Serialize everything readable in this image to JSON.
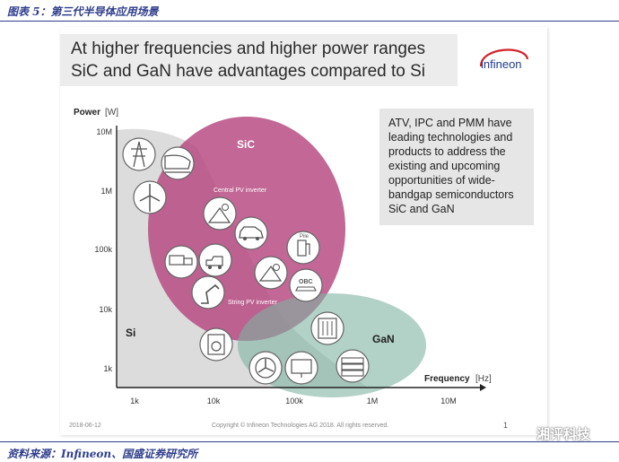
{
  "caption": "图表 5：第三代半导体应用场景",
  "source": "资料来源：Infineon、国盛证券研究所",
  "slide": {
    "title_line1": "At higher frequencies and higher power ranges",
    "title_line2": "SiC and GaN have advantages compared to Si",
    "logo_text": "infineon",
    "info_lines": [
      "ATV, IPC and PMM have",
      "leading technologies and",
      "products to address the",
      "existing and upcoming",
      "opportunities of wide-",
      "bandgap semiconductors",
      "SiC and GaN"
    ],
    "date": "2018-06-12",
    "copyright": "Copyright © Infineon Technologies AG 2018. All rights reserved.",
    "page_number": "1"
  },
  "diagram": {
    "y_axis": {
      "label": "Power",
      "unit": "[W]",
      "ticks": [
        "10M",
        "1M",
        "100k",
        "10k",
        "1k"
      ]
    },
    "x_axis": {
      "label": "Frequency",
      "unit": "[Hz]",
      "ticks": [
        "1k",
        "10k",
        "100k",
        "1M",
        "10M"
      ]
    },
    "regions": {
      "si": "Si",
      "sic": "SiC",
      "gan": "GaN"
    },
    "annotations": {
      "central_pv": "Central PV inverter",
      "string_pv": "String PV inverter",
      "pile": "Pile",
      "obc": "OBC"
    },
    "colors": {
      "sic": "#b4457f",
      "gan": "#8fbdae",
      "si": "#d4d4d4",
      "icon_bg": "#ffffff",
      "icon_stroke": "#555555"
    }
  },
  "watermark": "湘评科技"
}
